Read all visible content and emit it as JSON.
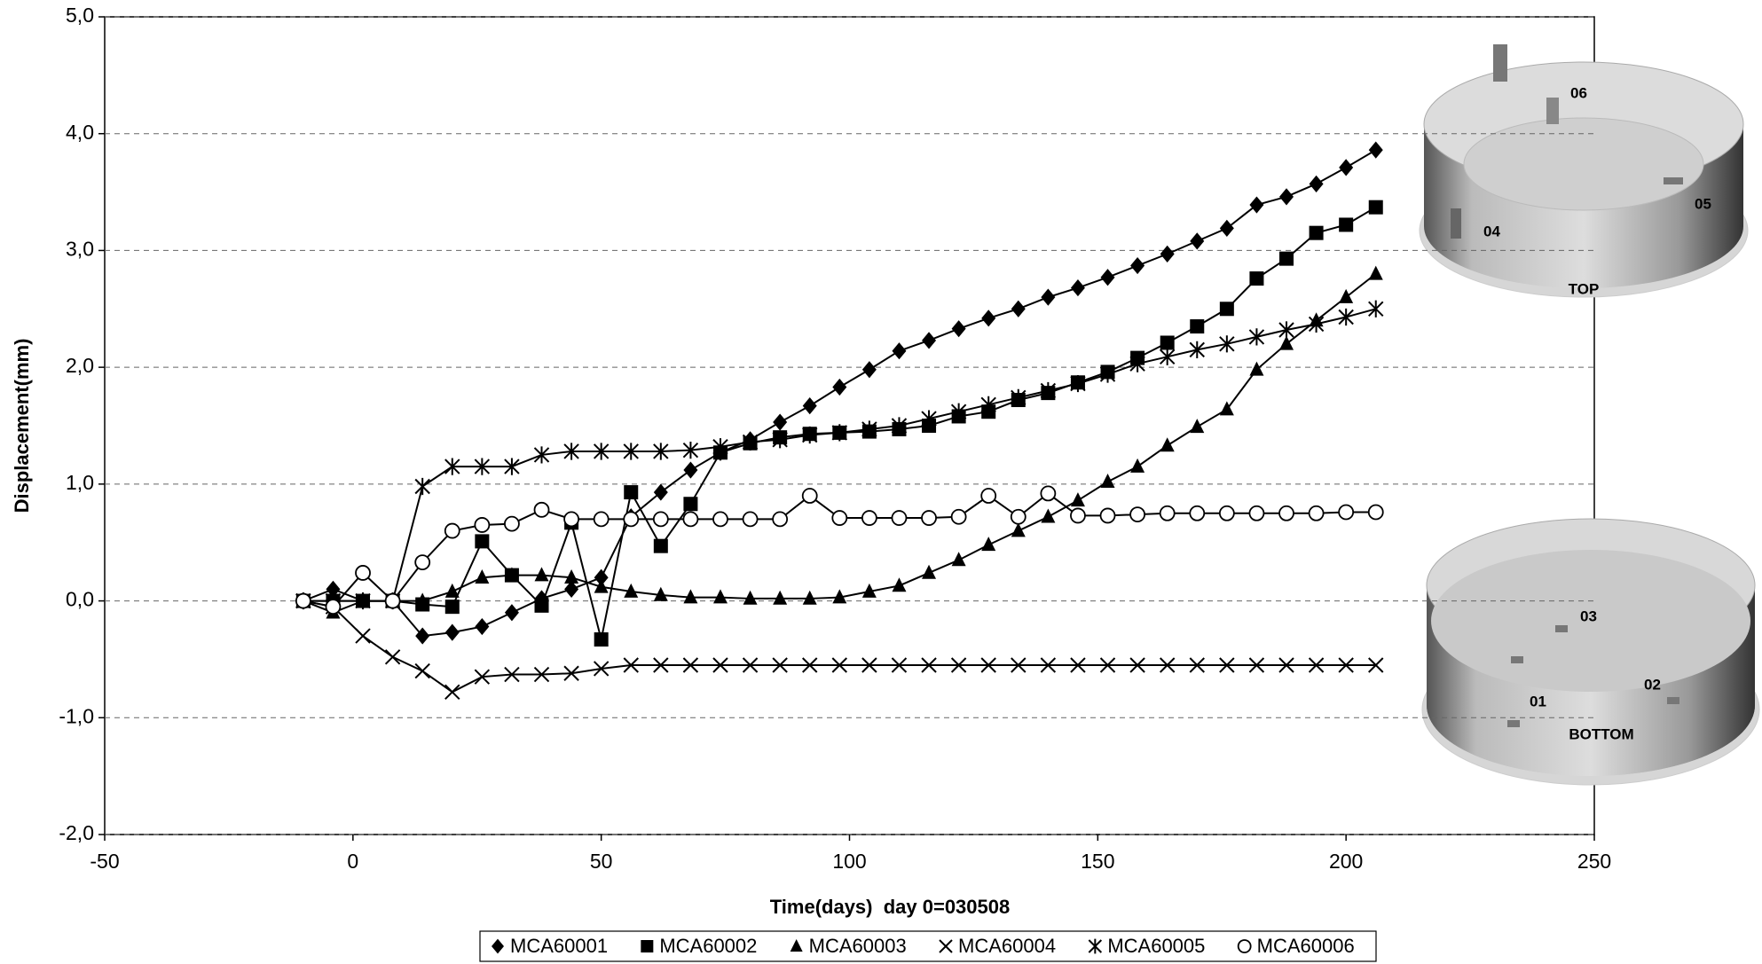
{
  "chart_data": {
    "type": "line",
    "xlabel": "Time(days)  day 0=030508",
    "ylabel": "Displacement(mm)",
    "x": [
      -10,
      -4,
      2,
      8,
      14,
      20,
      26,
      32,
      38,
      44,
      50,
      56,
      62,
      68,
      74,
      80,
      86,
      92,
      98,
      104,
      110,
      116,
      122,
      128,
      134,
      140,
      146,
      152,
      158,
      164,
      170,
      176,
      182,
      188,
      194,
      200,
      206
    ],
    "series": [
      {
        "name": "MCA60001",
        "color": "#000000",
        "marker": "diamond",
        "values": [
          0,
          0.1,
          0,
          0,
          -0.3,
          -0.27,
          -0.22,
          -0.1,
          0.02,
          0.1,
          0.2,
          0.72,
          0.93,
          1.12,
          1.27,
          1.38,
          1.53,
          1.67,
          1.83,
          1.98,
          2.14,
          2.23,
          2.33,
          2.42,
          2.5,
          2.6,
          2.68,
          2.77,
          2.87,
          2.97,
          3.08,
          3.19,
          3.39,
          3.46,
          3.57,
          3.71,
          3.86
        ]
      },
      {
        "name": "MCA60002",
        "color": "#000000",
        "marker": "square",
        "values": [
          0,
          0,
          0,
          0,
          -0.03,
          -0.05,
          0.51,
          0.22,
          -0.04,
          0.67,
          -0.33,
          0.93,
          0.47,
          0.83,
          1.27,
          1.35,
          1.4,
          1.43,
          1.44,
          1.45,
          1.47,
          1.5,
          1.58,
          1.62,
          1.72,
          1.78,
          1.87,
          1.96,
          2.08,
          2.21,
          2.35,
          2.5,
          2.76,
          2.93,
          3.15,
          3.22,
          3.37
        ]
      },
      {
        "name": "MCA60003",
        "color": "#000000",
        "marker": "triangle",
        "values": [
          0,
          -0.1,
          0,
          0,
          0,
          0.08,
          0.2,
          0.22,
          0.22,
          0.2,
          0.12,
          0.08,
          0.05,
          0.03,
          0.03,
          0.02,
          0.02,
          0.02,
          0.03,
          0.08,
          0.13,
          0.24,
          0.35,
          0.48,
          0.6,
          0.72,
          0.86,
          1.02,
          1.15,
          1.33,
          1.49,
          1.64,
          1.98,
          2.2,
          2.4,
          2.6,
          2.8
        ]
      },
      {
        "name": "MCA60004",
        "color": "#000000",
        "marker": "x",
        "values": [
          0,
          -0.05,
          -0.3,
          -0.48,
          -0.6,
          -0.78,
          -0.65,
          -0.63,
          -0.63,
          -0.62,
          -0.58,
          -0.55,
          -0.55,
          -0.55,
          -0.55,
          -0.55,
          -0.55,
          -0.55,
          -0.55,
          -0.55,
          -0.55,
          -0.55,
          -0.55,
          -0.55,
          -0.55,
          -0.55,
          -0.55,
          -0.55,
          -0.55,
          -0.55,
          -0.55,
          -0.55,
          -0.55,
          -0.55,
          -0.55,
          -0.55,
          -0.55
        ]
      },
      {
        "name": "MCA60005",
        "color": "#000000",
        "marker": "star",
        "values": [
          0,
          0,
          0,
          0,
          0.98,
          1.15,
          1.15,
          1.15,
          1.25,
          1.28,
          1.28,
          1.28,
          1.28,
          1.29,
          1.32,
          1.36,
          1.38,
          1.42,
          1.44,
          1.47,
          1.5,
          1.56,
          1.62,
          1.68,
          1.74,
          1.8,
          1.86,
          1.94,
          2.03,
          2.09,
          2.15,
          2.2,
          2.26,
          2.32,
          2.37,
          2.43,
          2.5
        ]
      },
      {
        "name": "MCA60006",
        "color": "#000000",
        "marker": "circle",
        "values": [
          0,
          -0.05,
          0.24,
          0,
          0.33,
          0.6,
          0.65,
          0.66,
          0.78,
          0.7,
          0.7,
          0.7,
          0.7,
          0.7,
          0.7,
          0.7,
          0.7,
          0.9,
          0.71,
          0.71,
          0.71,
          0.71,
          0.72,
          0.9,
          0.72,
          0.92,
          0.73,
          0.73,
          0.74,
          0.75,
          0.75,
          0.75,
          0.75,
          0.75,
          0.75,
          0.76,
          0.76
        ]
      }
    ],
    "xlim": [
      -50,
      250
    ],
    "xticks": [
      -50,
      0,
      50,
      100,
      150,
      200,
      250
    ],
    "ylim": [
      -2,
      5
    ],
    "yticks": [
      {
        "value": -2,
        "label": "-2,0"
      },
      {
        "value": -1,
        "label": "-1,0"
      },
      {
        "value": 0,
        "label": "0,0"
      },
      {
        "value": 1,
        "label": "1,0"
      },
      {
        "value": 2,
        "label": "2,0"
      },
      {
        "value": 3,
        "label": "3,0"
      },
      {
        "value": 4,
        "label": "4,0"
      },
      {
        "value": 5,
        "label": "5,0"
      }
    ],
    "grid": true,
    "legend": "bottom"
  },
  "illustrations": {
    "top": {
      "title": "TOP",
      "sensors": [
        "06",
        "05",
        "04"
      ]
    },
    "bottom": {
      "title": "BOTTOM",
      "sensors": [
        "03",
        "01",
        "02"
      ]
    }
  }
}
